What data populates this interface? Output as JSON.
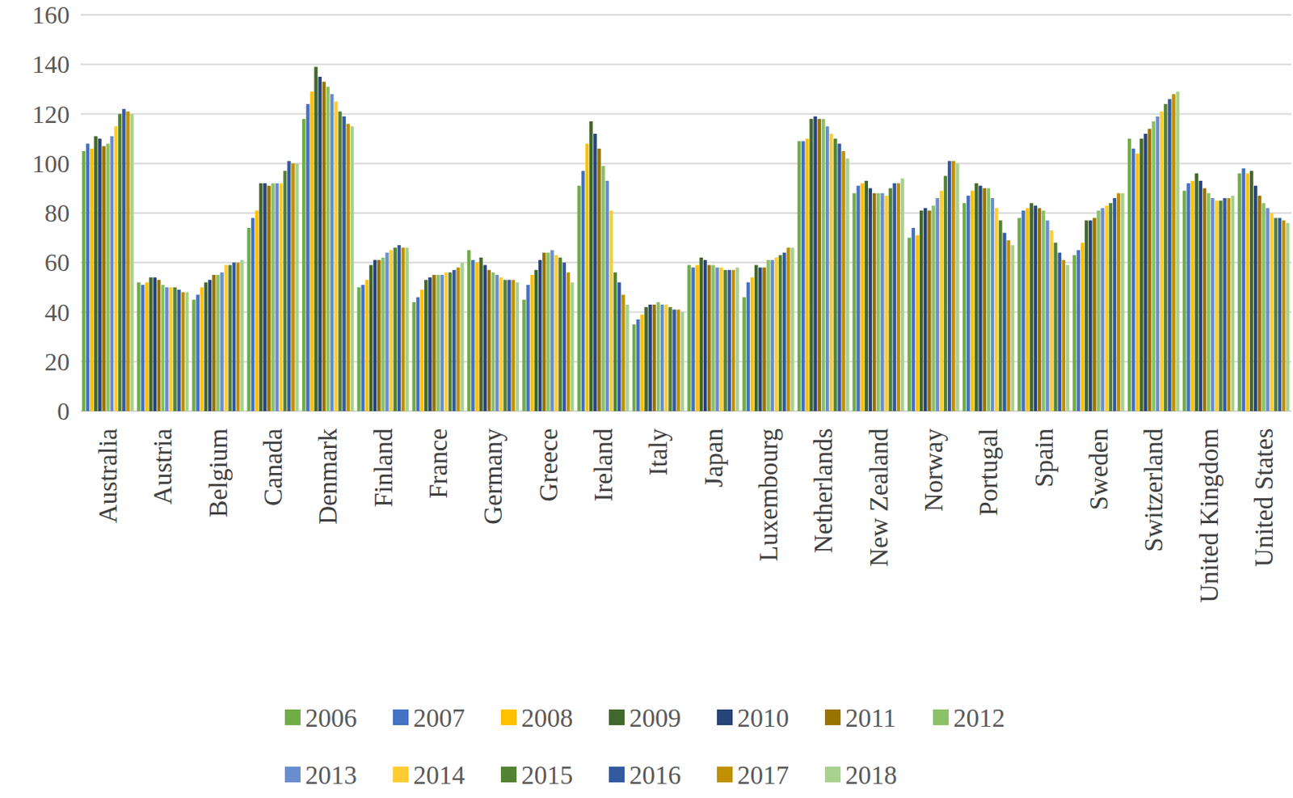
{
  "chart_data": {
    "type": "bar",
    "categories": [
      "Australia",
      "Austria",
      "Belgium",
      "Canada",
      "Denmark",
      "Finland",
      "France",
      "Germany",
      "Greece",
      "Ireland",
      "Italy",
      "Japan",
      "Luxembourg",
      "Netherlands",
      "New Zealand",
      "Norway",
      "Portugal",
      "Spain",
      "Sweden",
      "Switzerland",
      "United Kingdom",
      "United States"
    ],
    "series": [
      {
        "name": "2006",
        "color": "#70ad47",
        "values": [
          105,
          52,
          45,
          74,
          118,
          50,
          44,
          65,
          45,
          91,
          35,
          59,
          46,
          109,
          88,
          70,
          84,
          78,
          63,
          110,
          89,
          96
        ]
      },
      {
        "name": "2007",
        "color": "#4472c4",
        "values": [
          108,
          51,
          47,
          78,
          124,
          51,
          46,
          61,
          51,
          97,
          37,
          58,
          52,
          109,
          91,
          74,
          87,
          81,
          65,
          106,
          92,
          98
        ]
      },
      {
        "name": "2008",
        "color": "#ffc000",
        "values": [
          106,
          52,
          50,
          81,
          129,
          53,
          49,
          60,
          55,
          108,
          39,
          59,
          54,
          110,
          92,
          71,
          89,
          82,
          68,
          104,
          93,
          96
        ]
      },
      {
        "name": "2009",
        "color": "#43682b",
        "values": [
          111,
          54,
          52,
          92,
          139,
          59,
          53,
          62,
          57,
          117,
          42,
          62,
          59,
          118,
          93,
          81,
          92,
          84,
          77,
          110,
          96,
          97
        ]
      },
      {
        "name": "2010",
        "color": "#264478",
        "values": [
          110,
          54,
          53,
          92,
          135,
          61,
          54,
          59,
          61,
          112,
          43,
          61,
          58,
          119,
          90,
          82,
          91,
          83,
          77,
          112,
          93,
          91
        ]
      },
      {
        "name": "2011",
        "color": "#997300",
        "values": [
          107,
          53,
          55,
          91,
          133,
          61,
          55,
          57,
          64,
          106,
          43,
          59,
          58,
          118,
          88,
          81,
          90,
          82,
          78,
          114,
          90,
          87
        ]
      },
      {
        "name": "2012",
        "color": "#8cc168",
        "values": [
          108,
          51,
          55,
          92,
          131,
          62,
          55,
          56,
          64,
          99,
          44,
          59,
          61,
          118,
          88,
          83,
          90,
          81,
          81,
          117,
          88,
          84
        ]
      },
      {
        "name": "2013",
        "color": "#698ed0",
        "values": [
          111,
          50,
          56,
          92,
          128,
          64,
          55,
          55,
          65,
          93,
          43,
          58,
          61,
          115,
          88,
          86,
          86,
          77,
          82,
          119,
          86,
          82
        ]
      },
      {
        "name": "2014",
        "color": "#ffcd33",
        "values": [
          115,
          50,
          59,
          92,
          125,
          65,
          56,
          54,
          63,
          81,
          43,
          58,
          62,
          112,
          87,
          89,
          82,
          73,
          83,
          121,
          85,
          80
        ]
      },
      {
        "name": "2015",
        "color": "#548235",
        "values": [
          120,
          50,
          59,
          97,
          121,
          66,
          56,
          53,
          62,
          56,
          42,
          57,
          63,
          110,
          90,
          95,
          77,
          68,
          84,
          124,
          85,
          78
        ]
      },
      {
        "name": "2016",
        "color": "#335aa1",
        "values": [
          122,
          49,
          60,
          101,
          119,
          67,
          57,
          53,
          60,
          52,
          41,
          57,
          64,
          108,
          92,
          101,
          72,
          64,
          86,
          126,
          86,
          78
        ]
      },
      {
        "name": "2017",
        "color": "#bf9000",
        "values": [
          121,
          48,
          60,
          100,
          116,
          66,
          58,
          53,
          56,
          47,
          41,
          57,
          66,
          105,
          92,
          101,
          69,
          61,
          88,
          128,
          86,
          77
        ]
      },
      {
        "name": "2018",
        "color": "#a9d18e",
        "values": [
          120,
          48,
          61,
          100,
          115,
          66,
          60,
          52,
          52,
          43,
          40,
          58,
          66,
          102,
          94,
          100,
          67,
          59,
          88,
          129,
          87,
          76
        ]
      }
    ],
    "ylim": [
      0,
      160
    ],
    "yticks": [
      0,
      20,
      40,
      60,
      80,
      100,
      120,
      140,
      160
    ],
    "grid": true,
    "legend": "bottom"
  }
}
